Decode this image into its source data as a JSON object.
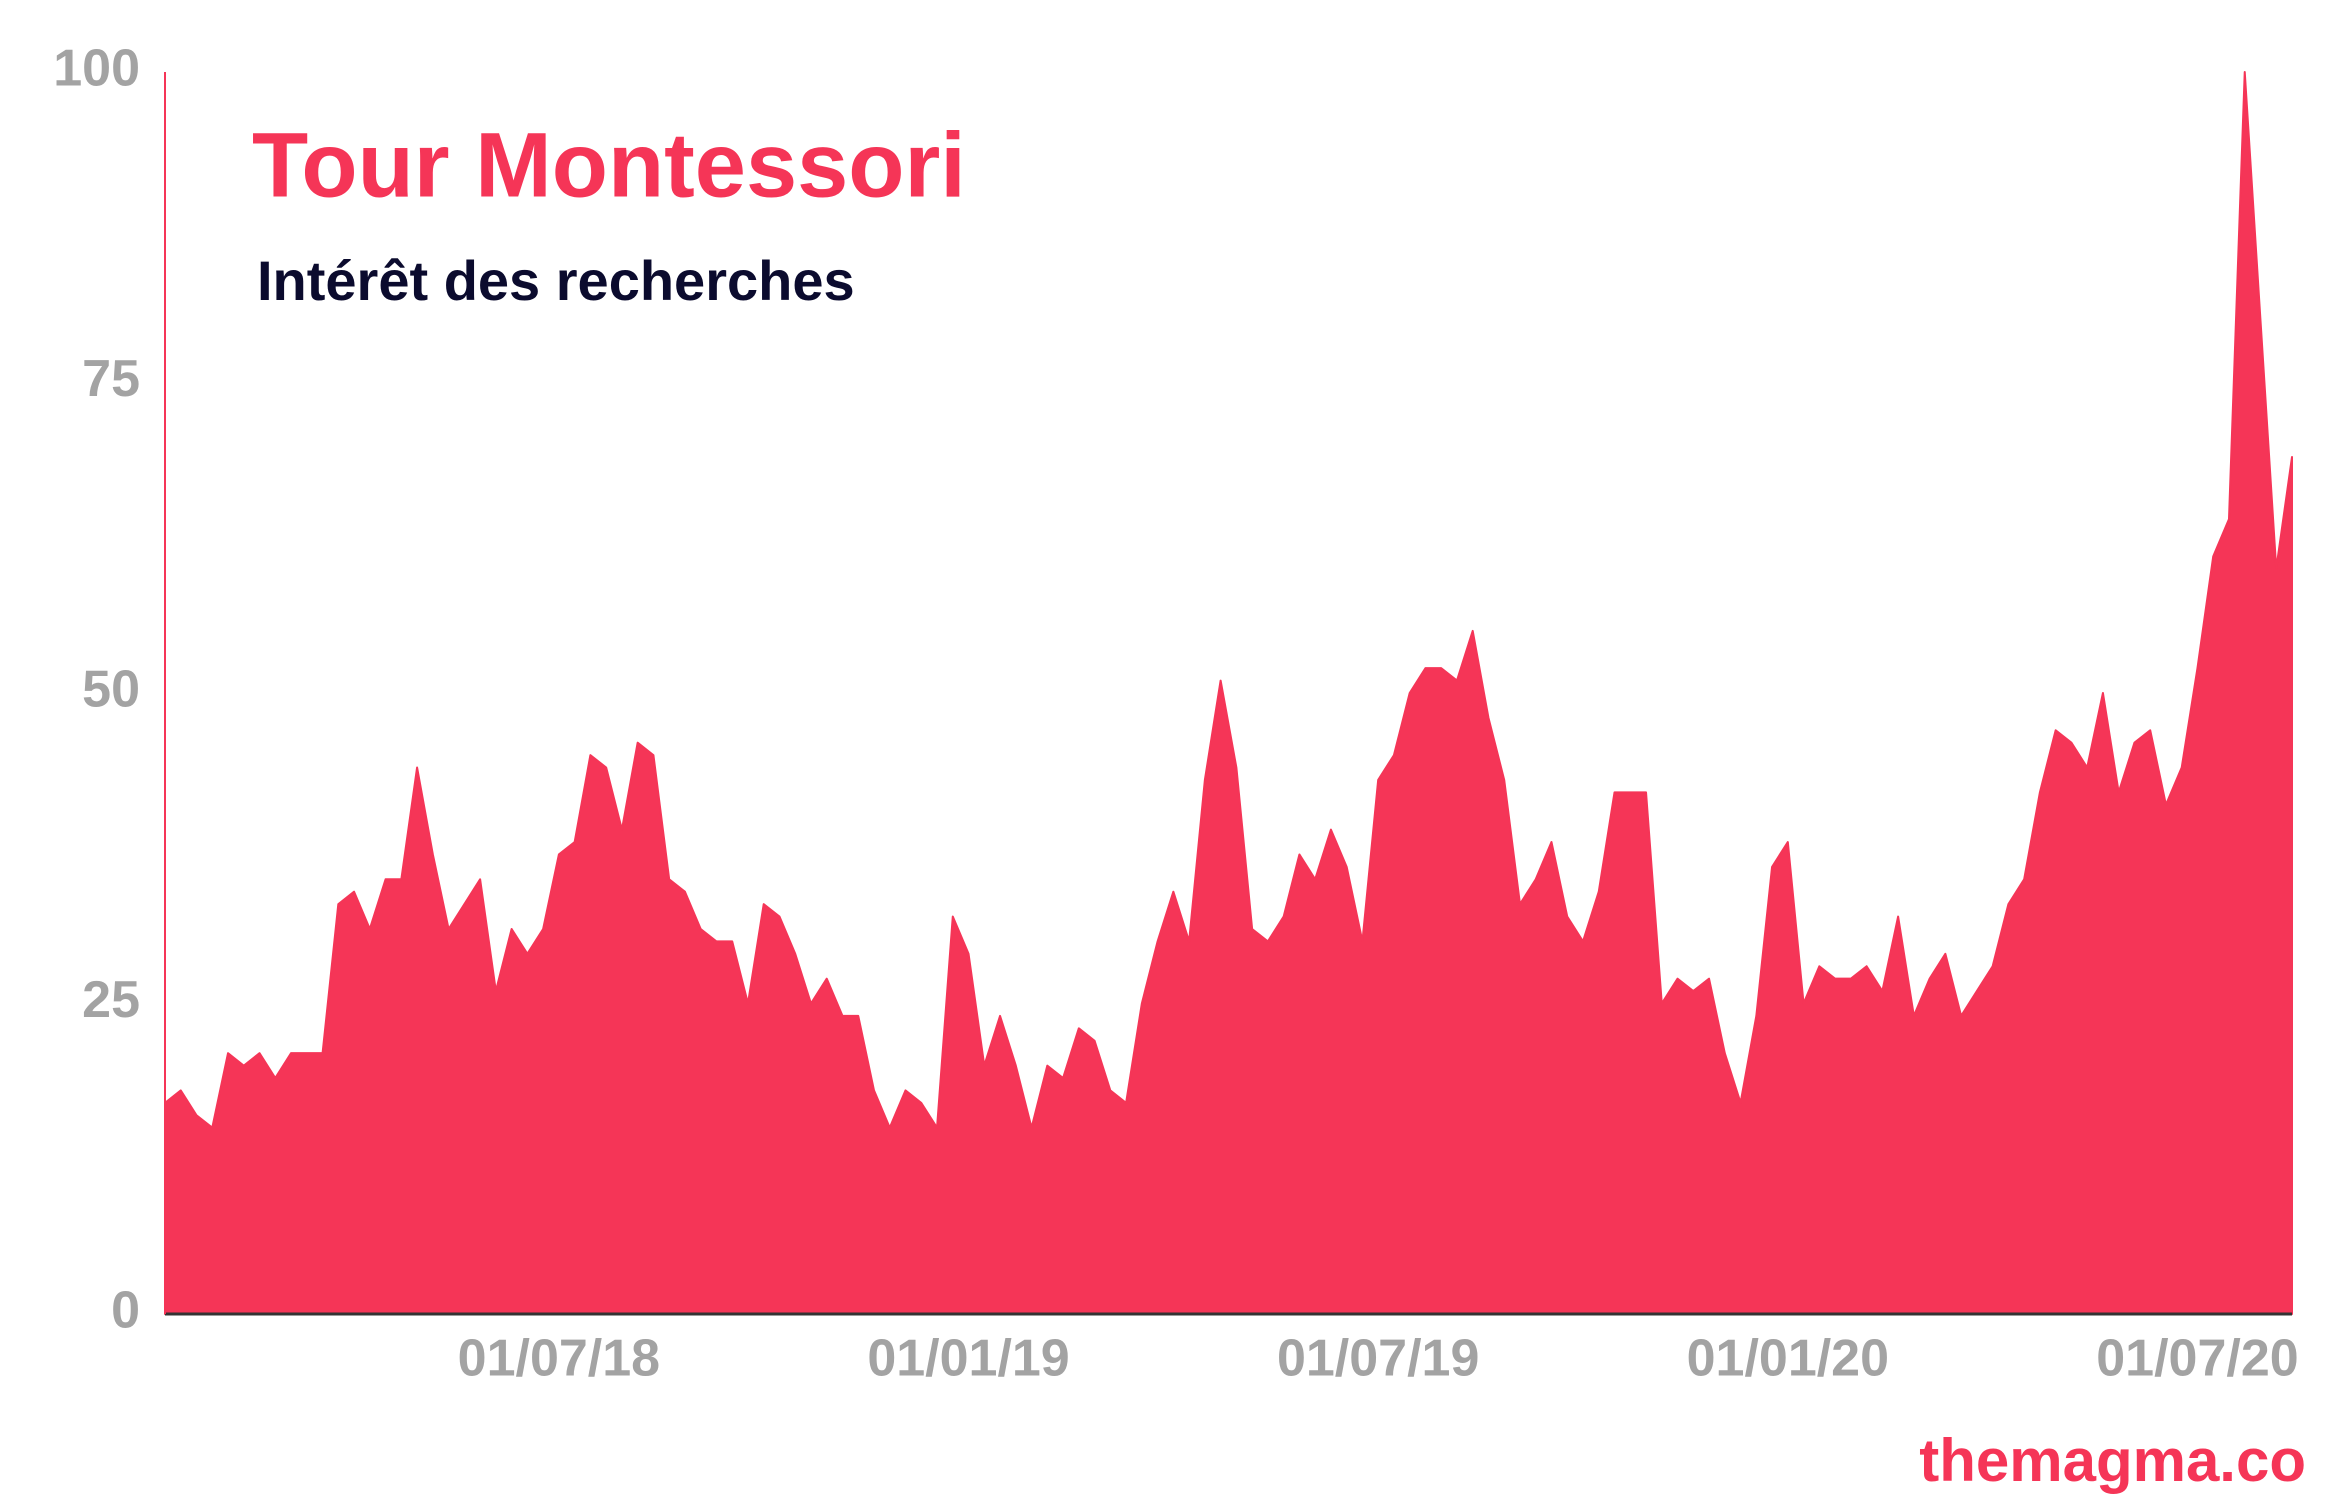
{
  "chart_data": {
    "type": "area",
    "title": "Tour Montessori",
    "subtitle": "Intérêt des recherches",
    "source": "themagma.co",
    "color": "#f53557",
    "ylim": [
      0,
      100
    ],
    "yticks": [
      0,
      25,
      50,
      75,
      100
    ],
    "grid": false,
    "categories": [
      null,
      null,
      null,
      null,
      null,
      null,
      null,
      null,
      null,
      null,
      null,
      null,
      null,
      null,
      null,
      null,
      null,
      null,
      null,
      null,
      null,
      null,
      null,
      null,
      null,
      "01/07/18",
      null,
      null,
      null,
      null,
      null,
      null,
      null,
      null,
      null,
      null,
      null,
      null,
      null,
      null,
      null,
      null,
      null,
      null,
      null,
      null,
      null,
      null,
      null,
      null,
      null,
      "01/01/19",
      null,
      null,
      null,
      null,
      null,
      null,
      null,
      null,
      null,
      null,
      null,
      null,
      null,
      null,
      null,
      null,
      null,
      null,
      null,
      null,
      null,
      null,
      null,
      null,
      null,
      "01/07/19",
      null,
      null,
      null,
      null,
      null,
      null,
      null,
      null,
      null,
      null,
      null,
      null,
      null,
      null,
      null,
      null,
      null,
      null,
      null,
      null,
      null,
      null,
      null,
      null,
      null,
      "01/01/20",
      null,
      null,
      null,
      null,
      null,
      null,
      null,
      null,
      null,
      null,
      null,
      null,
      null,
      null,
      null,
      null,
      null,
      null,
      null,
      null,
      null,
      null,
      null,
      null,
      null,
      "01/07/20",
      null,
      null,
      null,
      null,
      null,
      null
    ],
    "values": [
      17,
      18,
      16,
      15,
      21,
      20,
      21,
      19,
      21,
      21,
      21,
      33,
      34,
      31,
      35,
      35,
      44,
      37,
      31,
      33,
      35,
      26,
      31,
      29,
      31,
      37,
      38,
      45,
      44,
      39,
      46,
      45,
      35,
      34,
      31,
      30,
      30,
      25,
      33,
      32,
      29,
      25,
      27,
      24,
      24,
      18,
      15,
      18,
      17,
      15,
      32,
      29,
      20,
      24,
      20,
      15,
      20,
      19,
      23,
      22,
      18,
      17,
      25,
      30,
      34,
      30,
      43,
      51,
      44,
      31,
      30,
      32,
      37,
      35,
      39,
      36,
      30,
      43,
      45,
      50,
      52,
      52,
      51,
      55,
      48,
      43,
      33,
      35,
      38,
      32,
      30,
      34,
      42,
      42,
      42,
      25,
      27,
      26,
      27,
      21,
      17,
      24,
      36,
      38,
      25,
      28,
      27,
      27,
      28,
      26,
      32,
      24,
      27,
      29,
      24,
      26,
      28,
      33,
      35,
      42,
      47,
      46,
      44,
      50,
      42,
      46,
      47,
      41,
      44,
      52,
      61,
      64,
      100,
      80,
      60,
      69
    ]
  }
}
